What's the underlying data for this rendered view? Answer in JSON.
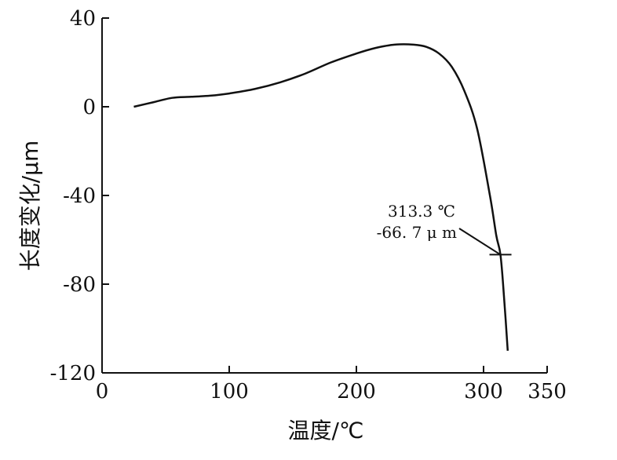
{
  "chart_data": {
    "type": "line",
    "title": "",
    "xlabel": "温度/℃",
    "ylabel": "长度变化/μm",
    "xlim": [
      0,
      350
    ],
    "ylim": [
      -120,
      40
    ],
    "xticks": [
      0,
      100,
      200,
      300,
      350
    ],
    "yticks": [
      40,
      0,
      -40,
      -80,
      -120
    ],
    "grid": false,
    "series": [
      {
        "x": [
          25,
          40,
          55,
          70,
          85,
          100,
          120,
          140,
          160,
          180,
          200,
          215,
          230,
          245,
          255,
          265,
          275,
          285,
          295,
          305,
          310,
          313.3,
          316,
          319
        ],
        "y": [
          0,
          2,
          4,
          4.5,
          5,
          6,
          8,
          11,
          15,
          20,
          24,
          26.5,
          28,
          28,
          27,
          24,
          18,
          7,
          -10,
          -40,
          -58,
          -66.7,
          -85,
          -110
        ]
      }
    ],
    "annotations": [
      {
        "x": 313.3,
        "y": -66.7,
        "lines": [
          "313.3 ℃",
          "-66. 7 μ m"
        ]
      }
    ]
  }
}
